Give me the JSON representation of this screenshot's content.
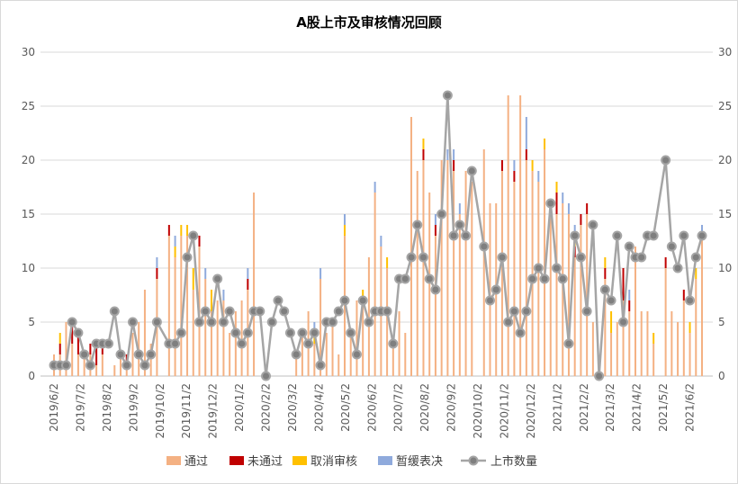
{
  "chart_data": {
    "type": "bar+line",
    "title": "A股上市及审核情况回顾",
    "ylim": [
      0,
      30
    ],
    "yticks": [
      "0",
      "5",
      "10",
      "15",
      "20",
      "25",
      "30"
    ],
    "y2ticks": [
      "0",
      "5",
      "10",
      "15",
      "20",
      "25",
      "30"
    ],
    "grid": true,
    "legend_position": "bottom",
    "xtick_labels": [
      "2019/6/2",
      "2019/7/2",
      "2019/8/2",
      "2019/9/2",
      "2019/10/2",
      "2019/11/2",
      "2019/12/2",
      "2020/1/2",
      "2020/2/2",
      "2020/3/2",
      "2020/4/2",
      "2020/5/2",
      "2020/6/2",
      "2020/7/2",
      "2020/8/2",
      "2020/9/2",
      "2020/10/2",
      "2020/11/2",
      "2020/12/2",
      "2021/1/2",
      "2021/2/2",
      "2021/3/2",
      "2021/4/2",
      "2021/5/2",
      "2021/6/2"
    ],
    "x_count": 108,
    "series": [
      {
        "name": "通过",
        "kind": "bar",
        "color": "#f4b183",
        "values": [
          2,
          2,
          5,
          3,
          2,
          2,
          2,
          1,
          2,
          0,
          1,
          2,
          1,
          4,
          5,
          8,
          3,
          9,
          0,
          13,
          11,
          13,
          13,
          8,
          12,
          9,
          6,
          7,
          7,
          4,
          6,
          7,
          8,
          17,
          0,
          0,
          0,
          0,
          0,
          0,
          2,
          4,
          6,
          3,
          9,
          4,
          5,
          2,
          13,
          4,
          7,
          7,
          11,
          17,
          12,
          10,
          3,
          6,
          4,
          24,
          19,
          20,
          17,
          13,
          20,
          20,
          19,
          15,
          19,
          18,
          0,
          21,
          16,
          16,
          19,
          26,
          18,
          26,
          20,
          19,
          18,
          21,
          16,
          15,
          16,
          15,
          11,
          14,
          15,
          5,
          0,
          9,
          4,
          5,
          7,
          6,
          12,
          6,
          6,
          3,
          0,
          10,
          6,
          5,
          7,
          4,
          9,
          13
        ]
      },
      {
        "name": "未通过",
        "kind": "bar",
        "color": "#c00000",
        "values": [
          0,
          1,
          0,
          2,
          2,
          0,
          1,
          2,
          1,
          0,
          0,
          0,
          1,
          0,
          0,
          0,
          0,
          1,
          0,
          1,
          0,
          0,
          0,
          0,
          1,
          0,
          0,
          0,
          0,
          0,
          0,
          0,
          1,
          0,
          0,
          0,
          0,
          0,
          0,
          0,
          0,
          0,
          0,
          0,
          0,
          0,
          0,
          0,
          0,
          0,
          0,
          0,
          0,
          0,
          0,
          0,
          0,
          0,
          0,
          0,
          0,
          1,
          0,
          1,
          0,
          0,
          1,
          0,
          0,
          0,
          0,
          0,
          0,
          0,
          1,
          0,
          1,
          0,
          1,
          0,
          0,
          0,
          0,
          2,
          0,
          0,
          1,
          1,
          1,
          0,
          0,
          1,
          0,
          0,
          3,
          1,
          0,
          0,
          0,
          0,
          0,
          1,
          0,
          0,
          1,
          0,
          0,
          0
        ]
      },
      {
        "name": "取消审核",
        "kind": "bar",
        "color": "#ffc000",
        "values": [
          0,
          1,
          0,
          0,
          0,
          0,
          0,
          0,
          0,
          0,
          0,
          0,
          0,
          0,
          0,
          0,
          0,
          0,
          0,
          0,
          1,
          1,
          1,
          2,
          0,
          0,
          2,
          0,
          0,
          0,
          0,
          0,
          0,
          0,
          0,
          0,
          0,
          0,
          0,
          0,
          0,
          0,
          0,
          1,
          0,
          0,
          0,
          0,
          1,
          0,
          0,
          1,
          0,
          0,
          0,
          1,
          0,
          0,
          0,
          0,
          0,
          1,
          0,
          0,
          0,
          0,
          0,
          0,
          0,
          0,
          0,
          0,
          0,
          0,
          0,
          0,
          0,
          0,
          0,
          1,
          0,
          1,
          0,
          1,
          0,
          0,
          1,
          0,
          0,
          0,
          0,
          1,
          2,
          0,
          0,
          0,
          0,
          0,
          0,
          1,
          0,
          0,
          0,
          0,
          0,
          1,
          1,
          0
        ]
      },
      {
        "name": "暂缓表决",
        "kind": "bar",
        "color": "#8faadc",
        "values": [
          0,
          0,
          0,
          0,
          0,
          0,
          0,
          0,
          0,
          0,
          0,
          0,
          0,
          0,
          0,
          0,
          0,
          1,
          0,
          0,
          1,
          0,
          0,
          0,
          0,
          1,
          0,
          0,
          1,
          0,
          0,
          0,
          1,
          0,
          0,
          0,
          0,
          0,
          0,
          0,
          0,
          0,
          0,
          1,
          1,
          0,
          0,
          0,
          1,
          0,
          0,
          0,
          0,
          1,
          1,
          0,
          0,
          0,
          0,
          0,
          0,
          0,
          0,
          1,
          0,
          1,
          1,
          1,
          0,
          0,
          0,
          0,
          0,
          0,
          0,
          0,
          1,
          0,
          3,
          0,
          1,
          0,
          0,
          0,
          1,
          1,
          1,
          0,
          0,
          0,
          0,
          0,
          0,
          0,
          0,
          1,
          0,
          0,
          0,
          0,
          0,
          0,
          0,
          0,
          0,
          0,
          0,
          1
        ]
      },
      {
        "name": "上市数量",
        "kind": "line",
        "color": "#a5a5a5",
        "values": [
          1,
          1,
          1,
          5,
          4,
          2,
          1,
          3,
          3,
          3,
          6,
          2,
          1,
          5,
          2,
          1,
          2,
          5,
          null,
          3,
          3,
          4,
          11,
          13,
          5,
          6,
          5,
          9,
          5,
          6,
          4,
          3,
          4,
          6,
          6,
          0,
          5,
          7,
          6,
          4,
          2,
          4,
          3,
          4,
          1,
          5,
          5,
          6,
          7,
          4,
          2,
          7,
          5,
          6,
          6,
          6,
          3,
          9,
          9,
          11,
          14,
          11,
          9,
          8,
          15,
          26,
          13,
          14,
          13,
          19,
          null,
          12,
          7,
          8,
          11,
          5,
          6,
          4,
          6,
          9,
          10,
          9,
          16,
          10,
          9,
          3,
          13,
          11,
          6,
          14,
          0,
          8,
          7,
          13,
          5,
          12,
          11,
          11,
          13,
          13,
          null,
          20,
          12,
          10,
          13,
          7,
          11,
          13
        ]
      }
    ]
  }
}
